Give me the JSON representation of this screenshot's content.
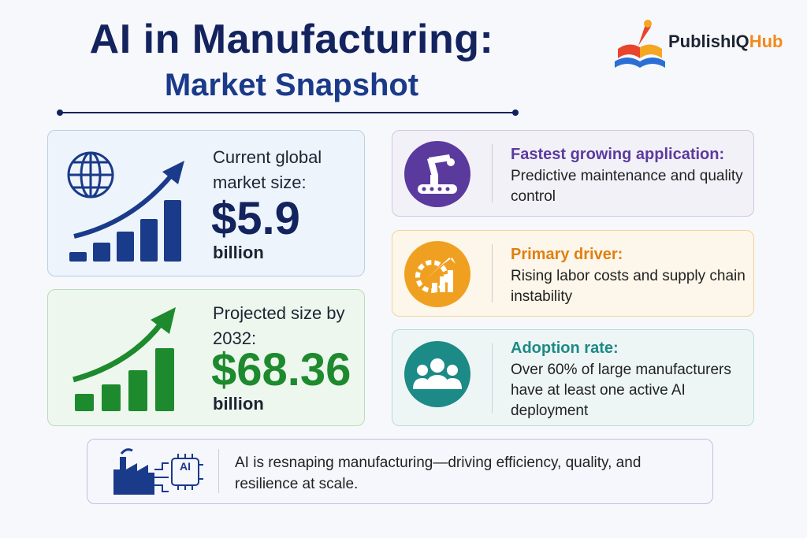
{
  "header": {
    "title": "AI in Manufacturing:",
    "subtitle": "Market Snapshot"
  },
  "logo": {
    "text": "PublishIQ",
    "accent": "Hub"
  },
  "stats": [
    {
      "label": "Current global market size:",
      "value": "$5.9",
      "unit": "billion"
    },
    {
      "label": "Projected size by 2032:",
      "value": "$68.36",
      "unit": "billion"
    }
  ],
  "insights": [
    {
      "title": "Fastest growing application:",
      "text": "Predictive maintenance and quality control"
    },
    {
      "title": "Primary driver:",
      "text": "Rising labor costs and supply chain instability"
    },
    {
      "title": "Adoption rate:",
      "text": "Over 60% of large manufacturers have at least one active AI deployment"
    }
  ],
  "footer": {
    "icon_label": "AI",
    "text": "AI is resnaping manufacturing—driving efficiency, quality, and resilience at scale."
  }
}
